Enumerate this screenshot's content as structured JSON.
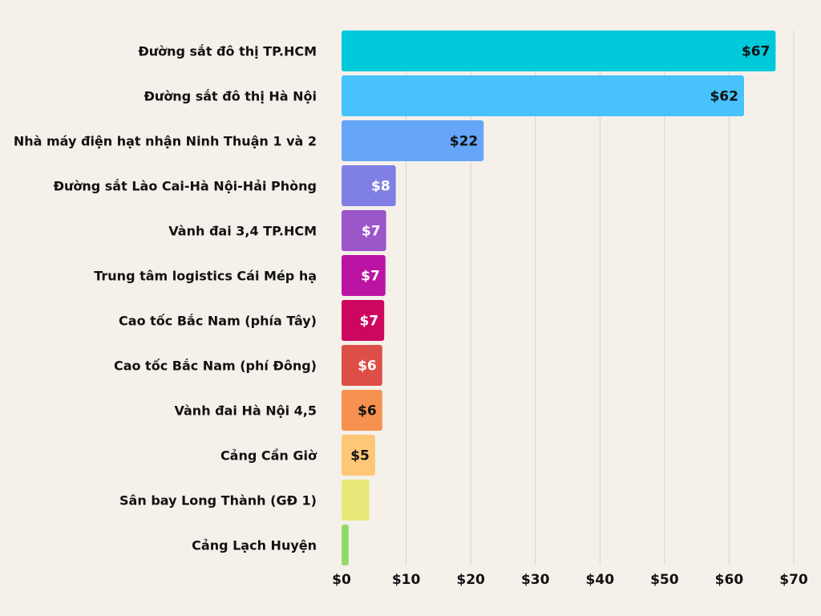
{
  "chart_data": {
    "type": "bar",
    "orientation": "horizontal",
    "title": "",
    "xlabel": "",
    "ylabel": "",
    "xlim": [
      0,
      70
    ],
    "grid": true,
    "tick_values": [
      0,
      10,
      20,
      30,
      40,
      50,
      60,
      70
    ],
    "tick_labels": [
      "$0",
      "$10",
      "$20",
      "$30",
      "$40",
      "$50",
      "$60",
      "$70"
    ],
    "categories": [
      "Đường sắt đô thị TP.HCM",
      "Đường sắt đô thị Hà Nội",
      "Nhà máy điện hạt nhận Ninh Thuận 1 và 2",
      "Đường sắt Lào Cai-Hà Nội-Hải Phòng",
      "Vành đai 3,4 TP.HCM",
      "Trung tâm logistics Cái Mép hạ",
      "Cao tốc Bắc Nam (phía Tây)",
      "Cao tốc Bắc Nam (phí Đông)",
      "Vành đai Hà Nội 4,5",
      "Cảng Cần Giờ",
      "Sân bay Long Thành (GĐ 1)",
      "Cảng Lạch Huyện"
    ],
    "values": [
      67.2,
      62.3,
      22.0,
      8.4,
      6.9,
      6.8,
      6.6,
      6.3,
      6.3,
      5.2,
      4.3,
      1.1
    ],
    "value_labels": [
      "$67",
      "$62",
      "$22",
      "$8",
      "$7",
      "$7",
      "$7",
      "$6",
      "$6",
      "$5",
      "",
      ""
    ],
    "colors": [
      "#00c9da",
      "#47c2fb",
      "#66a6f8",
      "#8080e4",
      "#9b56c9",
      "#bb14a4",
      "#cd075f",
      "#dd4e46",
      "#f7914f",
      "#fec778",
      "#e8e97b",
      "#92d96c"
    ],
    "label_colors": [
      "#111111",
      "#111111",
      "#111111",
      "#ffffff",
      "#ffffff",
      "#ffffff",
      "#ffffff",
      "#ffffff",
      "#111111",
      "#111111",
      "#111111",
      "#111111"
    ]
  }
}
